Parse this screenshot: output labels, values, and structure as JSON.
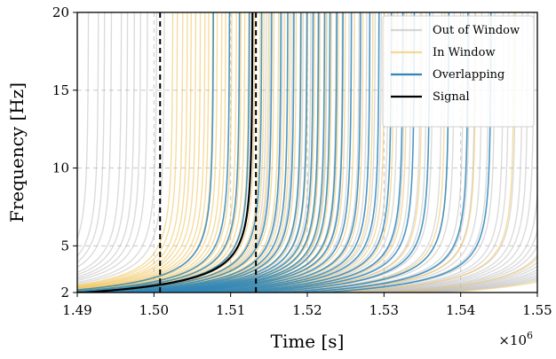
{
  "chart_data": {
    "type": "line",
    "xlabel": "Time [s]",
    "ylabel": "Frequency [Hz]",
    "x_multiplier_label": "×10",
    "x_multiplier_exponent": "6",
    "xlim": [
      1.49,
      1.55
    ],
    "ylim": [
      2,
      20
    ],
    "x_ticks": [
      1.49,
      1.5,
      1.51,
      1.52,
      1.53,
      1.54,
      1.55
    ],
    "x_tick_labels": [
      "1.49",
      "1.50",
      "1.51",
      "1.52",
      "1.53",
      "1.54",
      "1.55"
    ],
    "y_ticks": [
      2,
      5,
      10,
      15,
      20
    ],
    "y_tick_labels": [
      "2",
      "5",
      "10",
      "15",
      "20"
    ],
    "grid": true,
    "legend_position": "top-right",
    "window_edges": [
      1.5008,
      1.5133
    ],
    "series": [
      {
        "name": "Out of Window",
        "color": "#b0b0b0",
        "merger_times": [
          1.4915,
          1.4928,
          1.4936,
          1.4945,
          1.4958,
          1.4966,
          1.4975,
          1.4983,
          1.4992,
          1.5004,
          1.5014,
          1.5147,
          1.5152,
          1.5168,
          1.5181,
          1.5195,
          1.5205,
          1.5216,
          1.5226,
          1.5238,
          1.5246,
          1.5255,
          1.5268,
          1.5278,
          1.5289,
          1.5297,
          1.5306,
          1.5318,
          1.5327,
          1.5336,
          1.5348,
          1.5356,
          1.5364,
          1.5376,
          1.5385,
          1.5392,
          1.5404,
          1.5412,
          1.5419,
          1.5428,
          1.5437,
          1.5445,
          1.5456,
          1.5463,
          1.5472,
          1.5481,
          1.5488,
          1.5496,
          1.5505,
          1.5512,
          1.5519,
          1.5527,
          1.5536,
          1.5543,
          1.5551,
          1.5558,
          1.5566,
          1.5574,
          1.5582,
          1.559
        ]
      },
      {
        "name": "In Window",
        "color": "#efc050",
        "merger_times": [
          1.5025,
          1.5031,
          1.5038,
          1.5044,
          1.5049,
          1.5055,
          1.5061,
          1.5067,
          1.5072,
          1.5077,
          1.5083,
          1.5089,
          1.5094,
          1.5102,
          1.5108,
          1.5114,
          1.5119,
          1.5124,
          1.5132,
          1.5139,
          1.5144,
          1.515,
          1.5157,
          1.5163,
          1.5171,
          1.5178,
          1.5186,
          1.5193,
          1.5201,
          1.521,
          1.5217,
          1.5225,
          1.5232,
          1.5241,
          1.525,
          1.5262,
          1.5273,
          1.5286,
          1.5301,
          1.5313,
          1.533,
          1.535,
          1.538,
          1.542,
          1.547,
          1.553,
          1.56
        ]
      },
      {
        "name": "Overlapping",
        "color": "#2e86b8",
        "merger_times": [
          1.5078,
          1.5099,
          1.5112,
          1.5125,
          1.5141,
          1.5154,
          1.5166,
          1.5175,
          1.5183,
          1.5192,
          1.52,
          1.5208,
          1.5215,
          1.5223,
          1.523,
          1.5239,
          1.5247,
          1.5258,
          1.527,
          1.5282,
          1.5294,
          1.531,
          1.5325,
          1.534,
          1.536,
          1.5385,
          1.541,
          1.544
        ]
      },
      {
        "name": "Signal",
        "color": "#000000",
        "merger_times": [
          1.5129
        ]
      }
    ]
  }
}
